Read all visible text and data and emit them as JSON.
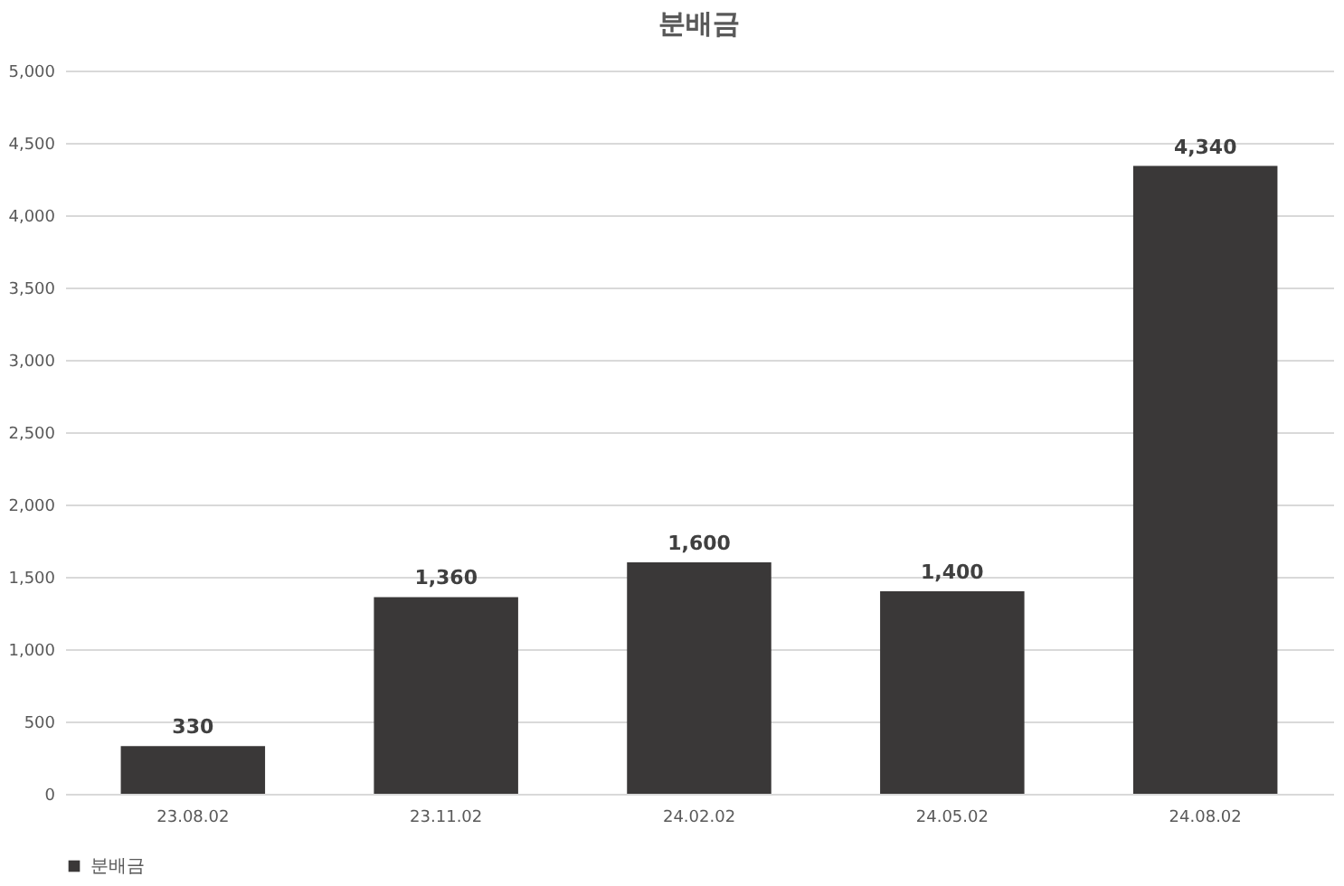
{
  "chart_data": {
    "type": "bar",
    "title": "분배금",
    "categories": [
      "23.08.02",
      "23.11.02",
      "24.02.02",
      "24.05.02",
      "24.08.02"
    ],
    "series": [
      {
        "name": "분배금",
        "color": "#3a3838",
        "values": [
          330,
          1360,
          1600,
          1400,
          4340
        ],
        "value_labels": [
          "330",
          "1,360",
          "1,600",
          "1,400",
          "4,340"
        ]
      }
    ],
    "ylim": [
      0,
      5000
    ],
    "yticks": [
      0,
      500,
      {
        "value": 1000,
        "label": "1,000"
      },
      {
        "value": 1500,
        "label": "1,500"
      },
      {
        "value": 2000,
        "label": "2,000"
      },
      {
        "value": 2500,
        "label": "2,500"
      },
      {
        "value": 3000,
        "label": "3,000"
      },
      {
        "value": 3500,
        "label": "3,500"
      },
      {
        "value": 4000,
        "label": "4,000"
      },
      {
        "value": 4500,
        "label": "4,500"
      },
      {
        "value": 5000,
        "label": "5,000"
      }
    ],
    "grid": "y",
    "legend": "bottom"
  }
}
